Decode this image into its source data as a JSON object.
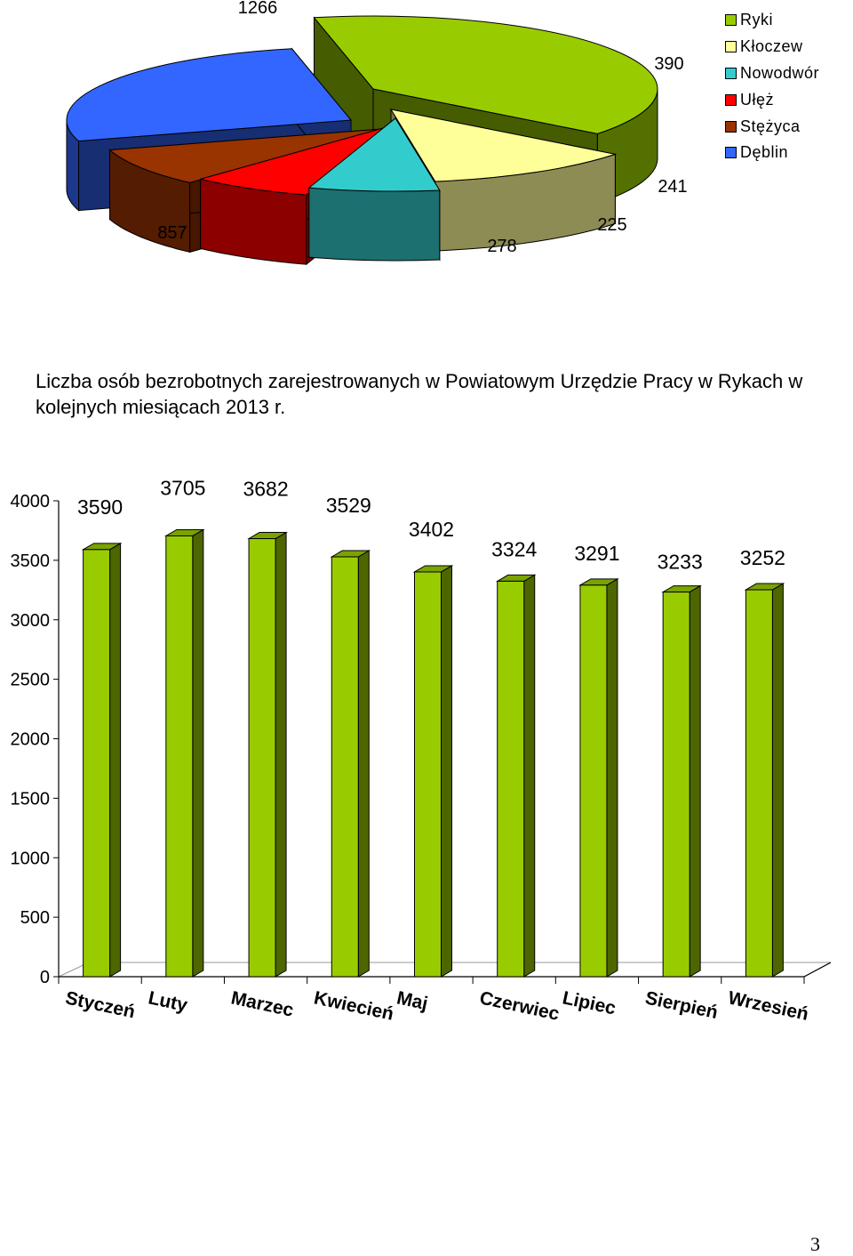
{
  "chart_data": [
    {
      "type": "pie",
      "title": "",
      "categories": [
        "Ryki",
        "Kłoczew",
        "Nowodwór",
        "Ułęż",
        "Stężyca",
        "Dęblin"
      ],
      "values": [
        1266,
        390,
        241,
        225,
        278,
        857
      ],
      "colors": [
        "#99cc00",
        "#ffff99",
        "#33cccc",
        "#ff0000",
        "#993300",
        "#3366ff"
      ],
      "legend": "top-right",
      "labels": [
        "1266",
        "390",
        "241",
        "225",
        "278",
        "857"
      ]
    },
    {
      "type": "bar",
      "title": "Liczba osób bezrobotnych zarejestrowanych w Powiatowym Urzędzie Pracy w Rykach w kolejnych miesiącach 2013  r.",
      "categories": [
        "Styczeń",
        "Luty",
        "Marzec",
        "Kwiecień",
        "Maj",
        "Czerwiec",
        "Lipiec",
        "Sierpień",
        "Wrzesień"
      ],
      "values": [
        3590,
        3705,
        3682,
        3529,
        3402,
        3324,
        3291,
        3233,
        3252
      ],
      "labels": [
        "3590",
        "3705",
        "3682",
        "3529",
        "3402",
        "3324",
        "3291",
        "3233",
        "3252"
      ],
      "ylim": [
        0,
        4000
      ],
      "yticks": [
        "0",
        "500",
        "1000",
        "1500",
        "2000",
        "2500",
        "3000",
        "3500",
        "4000"
      ],
      "color": "#99cc00",
      "xlabel": "",
      "ylabel": "",
      "grid": false
    }
  ],
  "page_number": "3"
}
